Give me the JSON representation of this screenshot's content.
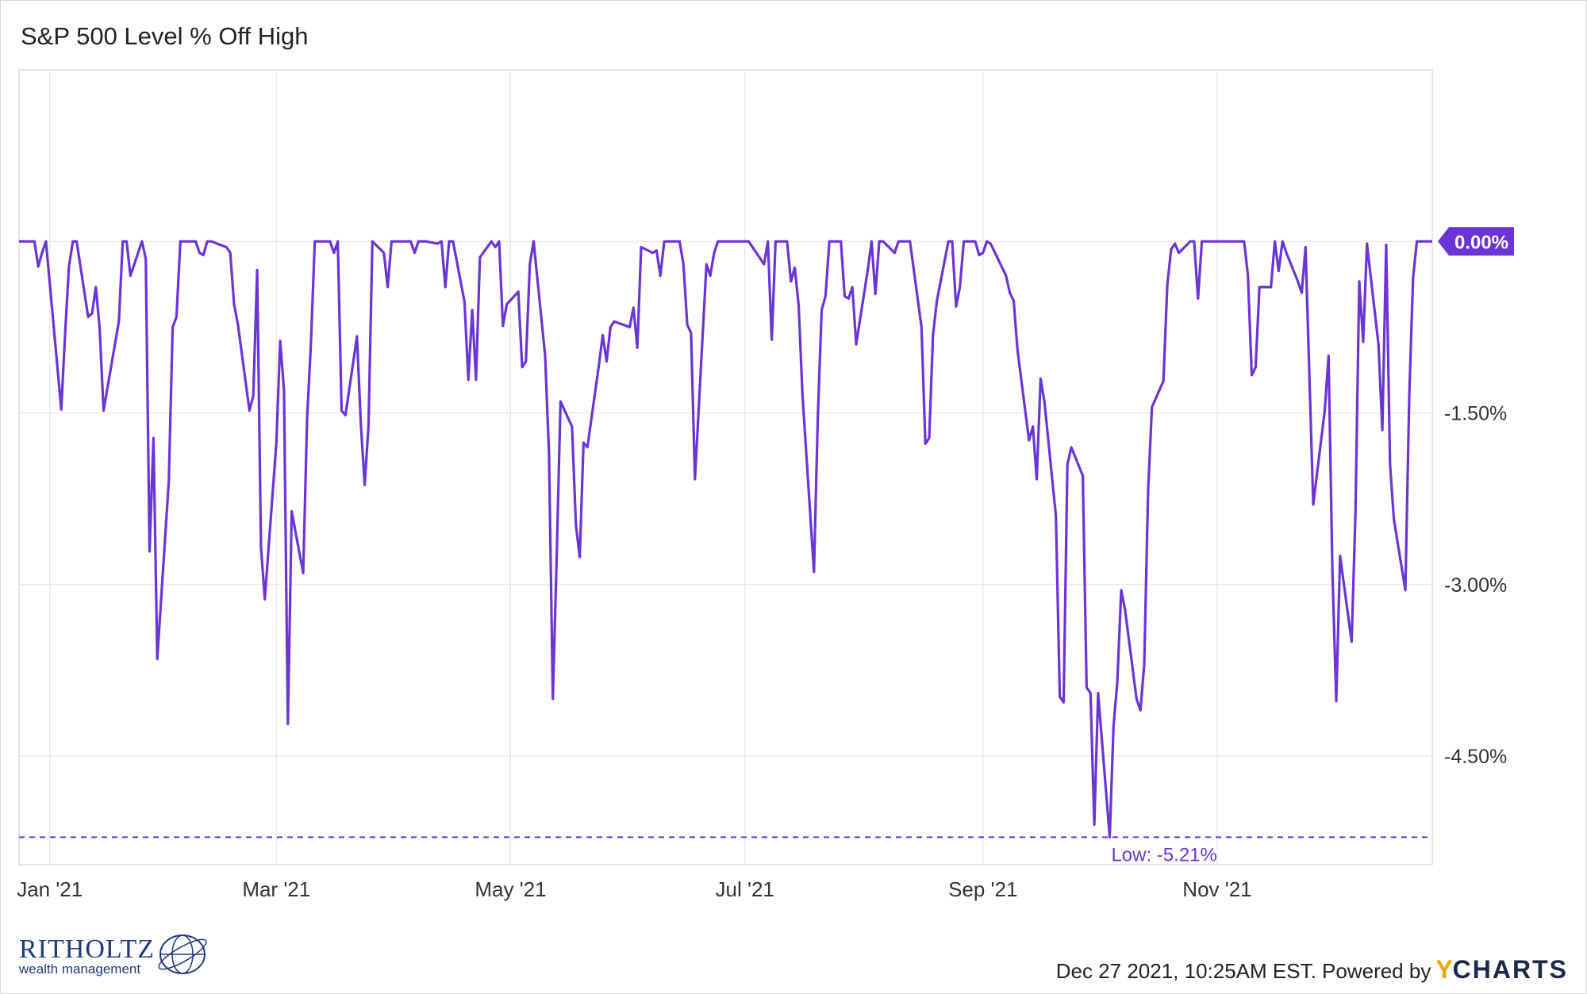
{
  "chart_data": {
    "type": "line",
    "title": "S&P 500 Level % Off High",
    "xlabel": "",
    "ylabel": "",
    "x_ticks": [
      "Jan '21",
      "Mar '21",
      "May '21",
      "Jul '21",
      "Sep '21",
      "Nov '21"
    ],
    "x_tick_dates": [
      "2021-01-01",
      "2021-03-01",
      "2021-05-01",
      "2021-07-01",
      "2021-09-01",
      "2021-11-01"
    ],
    "y_ticks": [
      "-1.50%",
      "-3.00%",
      "-4.50%"
    ],
    "y_tick_values": [
      -1.5,
      -3.0,
      -4.5
    ],
    "xlim": [
      "2020-12-24",
      "2021-12-27"
    ],
    "ylim": [
      -5.45,
      1.5
    ],
    "grid": true,
    "legend": "none",
    "last_value_label": "0.00%",
    "low_label": "Low: -5.21%",
    "low_value": -5.21,
    "colors": {
      "line": "#6b35d6",
      "grid": "#e6e6e6",
      "badge": "#6b35d6"
    },
    "series": [
      {
        "values": [
          [
            "2020-12-24",
            0.0
          ],
          [
            "2020-12-28",
            0.0
          ],
          [
            "2020-12-29",
            -0.22
          ],
          [
            "2020-12-30",
            -0.1
          ],
          [
            "2020-12-31",
            0.0
          ],
          [
            "2021-01-04",
            -1.47
          ],
          [
            "2021-01-05",
            -0.8
          ],
          [
            "2021-01-06",
            -0.22
          ],
          [
            "2021-01-07",
            0.0
          ],
          [
            "2021-01-08",
            0.0
          ],
          [
            "2021-01-11",
            -0.66
          ],
          [
            "2021-01-12",
            -0.63
          ],
          [
            "2021-01-13",
            -0.4
          ],
          [
            "2021-01-14",
            -0.76
          ],
          [
            "2021-01-15",
            -1.48
          ],
          [
            "2021-01-19",
            -0.7
          ],
          [
            "2021-01-20",
            0.0
          ],
          [
            "2021-01-21",
            0.0
          ],
          [
            "2021-01-22",
            -0.3
          ],
          [
            "2021-01-25",
            0.0
          ],
          [
            "2021-01-26",
            -0.15
          ],
          [
            "2021-01-27",
            -2.71
          ],
          [
            "2021-01-28",
            -1.72
          ],
          [
            "2021-01-29",
            -3.65
          ],
          [
            "2021-02-01",
            -2.1
          ],
          [
            "2021-02-02",
            -0.75
          ],
          [
            "2021-02-03",
            -0.66
          ],
          [
            "2021-02-04",
            0.0
          ],
          [
            "2021-02-05",
            0.0
          ],
          [
            "2021-02-08",
            0.0
          ],
          [
            "2021-02-09",
            -0.1
          ],
          [
            "2021-02-10",
            -0.12
          ],
          [
            "2021-02-11",
            0.0
          ],
          [
            "2021-02-12",
            0.0
          ],
          [
            "2021-02-16",
            -0.05
          ],
          [
            "2021-02-17",
            -0.1
          ],
          [
            "2021-02-18",
            -0.55
          ],
          [
            "2021-02-19",
            -0.73
          ],
          [
            "2021-02-22",
            -1.48
          ],
          [
            "2021-02-23",
            -1.35
          ],
          [
            "2021-02-24",
            -0.25
          ],
          [
            "2021-02-25",
            -2.67
          ],
          [
            "2021-02-26",
            -3.13
          ],
          [
            "2021-03-01",
            -1.76
          ],
          [
            "2021-03-02",
            -0.87
          ],
          [
            "2021-03-03",
            -1.3
          ],
          [
            "2021-03-04",
            -4.22
          ],
          [
            "2021-03-05",
            -2.36
          ],
          [
            "2021-03-08",
            -2.9
          ],
          [
            "2021-03-09",
            -1.55
          ],
          [
            "2021-03-10",
            -0.9
          ],
          [
            "2021-03-11",
            0.0
          ],
          [
            "2021-03-12",
            0.0
          ],
          [
            "2021-03-15",
            0.0
          ],
          [
            "2021-03-16",
            -0.1
          ],
          [
            "2021-03-17",
            0.0
          ],
          [
            "2021-03-18",
            -1.48
          ],
          [
            "2021-03-19",
            -1.52
          ],
          [
            "2021-03-22",
            -0.83
          ],
          [
            "2021-03-23",
            -1.59
          ],
          [
            "2021-03-24",
            -2.13
          ],
          [
            "2021-03-25",
            -1.61
          ],
          [
            "2021-03-26",
            0.0
          ],
          [
            "2021-03-29",
            -0.1
          ],
          [
            "2021-03-30",
            -0.4
          ],
          [
            "2021-03-31",
            0.0
          ],
          [
            "2021-04-01",
            0.0
          ],
          [
            "2021-04-05",
            0.0
          ],
          [
            "2021-04-06",
            -0.1
          ],
          [
            "2021-04-07",
            0.0
          ],
          [
            "2021-04-08",
            0.0
          ],
          [
            "2021-04-09",
            0.0
          ],
          [
            "2021-04-12",
            -0.02
          ],
          [
            "2021-04-13",
            0.0
          ],
          [
            "2021-04-14",
            -0.4
          ],
          [
            "2021-04-15",
            0.0
          ],
          [
            "2021-04-16",
            0.0
          ],
          [
            "2021-04-19",
            -0.53
          ],
          [
            "2021-04-20",
            -1.21
          ],
          [
            "2021-04-21",
            -0.6
          ],
          [
            "2021-04-22",
            -1.21
          ],
          [
            "2021-04-23",
            -0.14
          ],
          [
            "2021-04-26",
            0.0
          ],
          [
            "2021-04-27",
            -0.05
          ],
          [
            "2021-04-28",
            0.0
          ],
          [
            "2021-04-29",
            -0.74
          ],
          [
            "2021-04-30",
            -0.55
          ],
          [
            "2021-05-03",
            -0.44
          ],
          [
            "2021-05-04",
            -1.1
          ],
          [
            "2021-05-05",
            -1.05
          ],
          [
            "2021-05-06",
            -0.2
          ],
          [
            "2021-05-07",
            0.0
          ],
          [
            "2021-05-10",
            -1.0
          ],
          [
            "2021-05-11",
            -1.86
          ],
          [
            "2021-05-12",
            -4.0
          ],
          [
            "2021-05-13",
            -2.75
          ],
          [
            "2021-05-14",
            -1.4
          ],
          [
            "2021-05-17",
            -1.62
          ],
          [
            "2021-05-18",
            -2.48
          ],
          [
            "2021-05-19",
            -2.76
          ],
          [
            "2021-05-20",
            -1.76
          ],
          [
            "2021-05-21",
            -1.8
          ],
          [
            "2021-05-24",
            -1.08
          ],
          [
            "2021-05-25",
            -0.82
          ],
          [
            "2021-05-26",
            -1.05
          ],
          [
            "2021-05-27",
            -0.75
          ],
          [
            "2021-05-28",
            -0.7
          ],
          [
            "2021-06-01",
            -0.75
          ],
          [
            "2021-06-02",
            -0.58
          ],
          [
            "2021-06-03",
            -0.93
          ],
          [
            "2021-06-04",
            -0.05
          ],
          [
            "2021-06-07",
            -0.1
          ],
          [
            "2021-06-08",
            -0.08
          ],
          [
            "2021-06-09",
            -0.3
          ],
          [
            "2021-06-10",
            0.0
          ],
          [
            "2021-06-11",
            0.0
          ],
          [
            "2021-06-14",
            0.0
          ],
          [
            "2021-06-15",
            -0.2
          ],
          [
            "2021-06-16",
            -0.73
          ],
          [
            "2021-06-17",
            -0.8
          ],
          [
            "2021-06-18",
            -2.08
          ],
          [
            "2021-06-21",
            -0.2
          ],
          [
            "2021-06-22",
            -0.3
          ],
          [
            "2021-06-23",
            -0.1
          ],
          [
            "2021-06-24",
            0.0
          ],
          [
            "2021-06-25",
            0.0
          ],
          [
            "2021-06-28",
            0.0
          ],
          [
            "2021-06-29",
            0.0
          ],
          [
            "2021-06-30",
            0.0
          ],
          [
            "2021-07-01",
            0.0
          ],
          [
            "2021-07-02",
            0.0
          ],
          [
            "2021-07-06",
            -0.2
          ],
          [
            "2021-07-07",
            0.0
          ],
          [
            "2021-07-08",
            -0.86
          ],
          [
            "2021-07-09",
            0.0
          ],
          [
            "2021-07-12",
            0.0
          ],
          [
            "2021-07-13",
            -0.35
          ],
          [
            "2021-07-14",
            -0.23
          ],
          [
            "2021-07-15",
            -0.56
          ],
          [
            "2021-07-16",
            -1.34
          ],
          [
            "2021-07-19",
            -2.89
          ],
          [
            "2021-07-20",
            -1.52
          ],
          [
            "2021-07-21",
            -0.6
          ],
          [
            "2021-07-22",
            -0.48
          ],
          [
            "2021-07-23",
            0.0
          ],
          [
            "2021-07-26",
            0.0
          ],
          [
            "2021-07-27",
            -0.48
          ],
          [
            "2021-07-28",
            -0.5
          ],
          [
            "2021-07-29",
            -0.4
          ],
          [
            "2021-07-30",
            -0.9
          ],
          [
            "2021-08-02",
            -0.25
          ],
          [
            "2021-08-03",
            0.0
          ],
          [
            "2021-08-04",
            -0.46
          ],
          [
            "2021-08-05",
            0.0
          ],
          [
            "2021-08-06",
            0.0
          ],
          [
            "2021-08-09",
            -0.1
          ],
          [
            "2021-08-10",
            0.0
          ],
          [
            "2021-08-11",
            0.0
          ],
          [
            "2021-08-12",
            0.0
          ],
          [
            "2021-08-13",
            0.0
          ],
          [
            "2021-08-16",
            -0.75
          ],
          [
            "2021-08-17",
            -1.77
          ],
          [
            "2021-08-18",
            -1.72
          ],
          [
            "2021-08-19",
            -0.82
          ],
          [
            "2021-08-20",
            -0.52
          ],
          [
            "2021-08-23",
            0.0
          ],
          [
            "2021-08-24",
            0.0
          ],
          [
            "2021-08-25",
            -0.57
          ],
          [
            "2021-08-26",
            -0.4
          ],
          [
            "2021-08-27",
            0.0
          ],
          [
            "2021-08-30",
            0.0
          ],
          [
            "2021-08-31",
            -0.12
          ],
          [
            "2021-09-01",
            -0.1
          ],
          [
            "2021-09-02",
            0.0
          ],
          [
            "2021-09-03",
            -0.02
          ],
          [
            "2021-09-07",
            -0.3
          ],
          [
            "2021-09-08",
            -0.45
          ],
          [
            "2021-09-09",
            -0.52
          ],
          [
            "2021-09-10",
            -0.95
          ],
          [
            "2021-09-13",
            -1.74
          ],
          [
            "2021-09-14",
            -1.62
          ],
          [
            "2021-09-15",
            -2.08
          ],
          [
            "2021-09-16",
            -1.2
          ],
          [
            "2021-09-17",
            -1.4
          ],
          [
            "2021-09-20",
            -2.4
          ],
          [
            "2021-09-21",
            -3.98
          ],
          [
            "2021-09-22",
            -4.03
          ],
          [
            "2021-09-23",
            -1.95
          ],
          [
            "2021-09-24",
            -1.8
          ],
          [
            "2021-09-27",
            -2.05
          ],
          [
            "2021-09-28",
            -3.9
          ],
          [
            "2021-09-29",
            -3.95
          ],
          [
            "2021-09-30",
            -5.1
          ],
          [
            "2021-10-01",
            -3.95
          ],
          [
            "2021-10-04",
            -5.21
          ],
          [
            "2021-10-05",
            -4.24
          ],
          [
            "2021-10-06",
            -3.85
          ],
          [
            "2021-10-07",
            -3.05
          ],
          [
            "2021-10-08",
            -3.22
          ],
          [
            "2021-10-11",
            -4.0
          ],
          [
            "2021-10-12",
            -4.1
          ],
          [
            "2021-10-13",
            -3.7
          ],
          [
            "2021-10-14",
            -2.18
          ],
          [
            "2021-10-15",
            -1.45
          ],
          [
            "2021-10-18",
            -1.22
          ],
          [
            "2021-10-19",
            -0.38
          ],
          [
            "2021-10-20",
            -0.07
          ],
          [
            "2021-10-21",
            -0.02
          ],
          [
            "2021-10-22",
            -0.1
          ],
          [
            "2021-10-25",
            0.0
          ],
          [
            "2021-10-26",
            0.0
          ],
          [
            "2021-10-27",
            -0.5
          ],
          [
            "2021-10-28",
            0.0
          ],
          [
            "2021-10-29",
            0.0
          ],
          [
            "2021-11-01",
            0.0
          ],
          [
            "2021-11-02",
            0.0
          ],
          [
            "2021-11-03",
            0.0
          ],
          [
            "2021-11-04",
            0.0
          ],
          [
            "2021-11-05",
            0.0
          ],
          [
            "2021-11-08",
            0.0
          ],
          [
            "2021-11-09",
            -0.3
          ],
          [
            "2021-11-10",
            -1.17
          ],
          [
            "2021-11-11",
            -1.1
          ],
          [
            "2021-11-12",
            -0.4
          ],
          [
            "2021-11-15",
            -0.4
          ],
          [
            "2021-11-16",
            0.0
          ],
          [
            "2021-11-17",
            -0.26
          ],
          [
            "2021-11-18",
            0.0
          ],
          [
            "2021-11-19",
            -0.1
          ],
          [
            "2021-11-22",
            -0.35
          ],
          [
            "2021-11-23",
            -0.45
          ],
          [
            "2021-11-24",
            -0.05
          ],
          [
            "2021-11-26",
            -2.3
          ],
          [
            "2021-11-29",
            -1.48
          ],
          [
            "2021-11-30",
            -1.0
          ],
          [
            "2021-12-01",
            -2.9
          ],
          [
            "2021-12-02",
            -4.02
          ],
          [
            "2021-12-03",
            -2.75
          ],
          [
            "2021-12-06",
            -3.5
          ],
          [
            "2021-12-07",
            -2.38
          ],
          [
            "2021-12-08",
            -0.35
          ],
          [
            "2021-12-09",
            -0.88
          ],
          [
            "2021-12-10",
            -0.02
          ],
          [
            "2021-12-13",
            -0.9
          ],
          [
            "2021-12-14",
            -1.65
          ],
          [
            "2021-12-15",
            -0.03
          ],
          [
            "2021-12-16",
            -1.95
          ],
          [
            "2021-12-17",
            -2.43
          ],
          [
            "2021-12-20",
            -3.05
          ],
          [
            "2021-12-21",
            -1.35
          ],
          [
            "2021-12-22",
            -0.32
          ],
          [
            "2021-12-23",
            0.0
          ],
          [
            "2021-12-27",
            0.0
          ]
        ]
      }
    ]
  },
  "footer": {
    "timestamp": "Dec 27 2021, 10:25AM EST. Powered by",
    "brand_y": "Y",
    "brand_rest": "CHARTS"
  },
  "logo": {
    "name": "RITHOLTZ",
    "subtitle": "wealth management"
  }
}
